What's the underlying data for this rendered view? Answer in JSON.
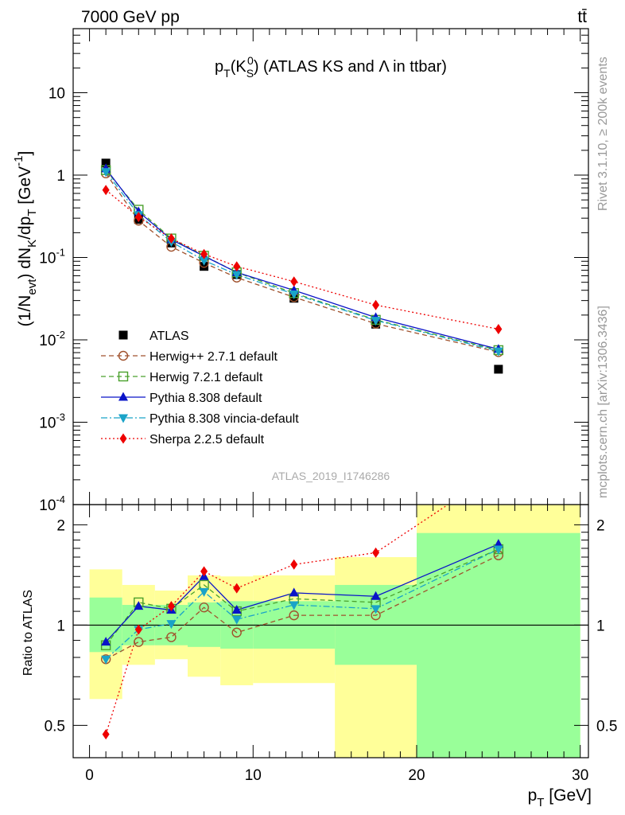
{
  "header": {
    "energy_label": "7000 GeV pp",
    "process_label": "tt̄"
  },
  "side_labels": {
    "rivet": "Rivet 3.1.10, ≥ 200k events",
    "mcplots": "mcplots.cern.ch [arXiv:1306.3436]"
  },
  "watermark": "ATLAS_2019_I1746286",
  "chart_data": [
    {
      "type": "line",
      "title": "p_T(K_S^0) (ATLAS KS and Λ in ttbar)",
      "ylabel": "(1/N_evt) dN_K/dp_T [GeV^-1]",
      "yscale": "log",
      "ylim": [
        0.0001,
        60
      ],
      "xlim": [
        -1,
        30.5
      ],
      "y_tick_labels": [
        "10^-4",
        "10^-3",
        "10^-2",
        "10^-1",
        "1",
        "10"
      ],
      "legend_position": "lower-left",
      "x": [
        1,
        3,
        5,
        7,
        9,
        12.5,
        17.5,
        25
      ],
      "series": [
        {
          "name": "ATLAS",
          "color": "#000000",
          "marker": "square-filled",
          "line": "none",
          "values": [
            1.4,
            0.29,
            0.15,
            0.078,
            0.062,
            0.032,
            0.0155,
            0.0044
          ]
        },
        {
          "name": "Herwig++ 2.7.1 default",
          "color": "#a0522d",
          "marker": "circle-open",
          "line": "dashed",
          "values": [
            1.05,
            0.28,
            0.135,
            0.086,
            0.057,
            0.033,
            0.0157,
            0.0071
          ]
        },
        {
          "name": "Herwig 7.2.1 default",
          "color": "#4aa02c",
          "marker": "square-open",
          "line": "dashed",
          "values": [
            1.15,
            0.38,
            0.17,
            0.105,
            0.066,
            0.037,
            0.0175,
            0.0075
          ]
        },
        {
          "name": "Pythia 8.308 default",
          "color": "#0a14c8",
          "marker": "triangle-up",
          "line": "solid",
          "values": [
            1.2,
            0.36,
            0.165,
            0.104,
            0.066,
            0.04,
            0.0187,
            0.0077
          ]
        },
        {
          "name": "Pythia 8.308 vincia-default",
          "color": "#1aa3c8",
          "marker": "triangle-down",
          "line": "dashdot",
          "values": [
            1.1,
            0.33,
            0.155,
            0.092,
            0.062,
            0.036,
            0.0172,
            0.0073
          ]
        },
        {
          "name": "Sherpa 2.2.5 default",
          "color": "#ee0000",
          "marker": "diamond",
          "line": "dotted",
          "values": [
            0.66,
            0.31,
            0.17,
            0.11,
            0.078,
            0.051,
            0.0265,
            0.0135
          ]
        }
      ]
    },
    {
      "type": "line",
      "ylabel": "Ratio to ATLAS",
      "xlabel": "p_T [GeV]",
      "ylim": [
        0.4,
        2.3
      ],
      "xlim": [
        -1,
        30.5
      ],
      "x_tick_labels": [
        "0",
        "10",
        "20",
        "30"
      ],
      "y_tick_labels": [
        "0.5",
        "1",
        "2"
      ],
      "reference_line": 1,
      "bands": [
        {
          "xlo": 0,
          "xhi": 2,
          "stat_lo": 0.83,
          "stat_hi": 1.21,
          "tot_lo": 0.6,
          "tot_hi": 1.47
        },
        {
          "xlo": 2,
          "xhi": 4,
          "stat_lo": 0.87,
          "stat_hi": 1.15,
          "tot_lo": 0.76,
          "tot_hi": 1.32
        },
        {
          "xlo": 4,
          "xhi": 6,
          "stat_lo": 0.87,
          "stat_hi": 1.15,
          "tot_lo": 0.79,
          "tot_hi": 1.27
        },
        {
          "xlo": 6,
          "xhi": 8,
          "stat_lo": 0.86,
          "stat_hi": 1.17,
          "tot_lo": 0.7,
          "tot_hi": 1.41
        },
        {
          "xlo": 8,
          "xhi": 10,
          "stat_lo": 0.85,
          "stat_hi": 1.18,
          "tot_lo": 0.66,
          "tot_hi": 1.4
        },
        {
          "xlo": 10,
          "xhi": 15,
          "stat_lo": 0.85,
          "stat_hi": 1.18,
          "tot_lo": 0.67,
          "tot_hi": 1.41
        },
        {
          "xlo": 15,
          "xhi": 20,
          "stat_lo": 0.76,
          "stat_hi": 1.32,
          "tot_lo": 0.39,
          "tot_hi": 1.6
        },
        {
          "xlo": 20,
          "xhi": 30,
          "stat_lo": 0.4,
          "stat_hi": 1.89,
          "tot_lo": 0.4,
          "tot_hi": 2.3
        }
      ],
      "x": [
        1,
        3,
        5,
        7,
        9,
        12.5,
        17.5,
        25
      ],
      "series": [
        {
          "name": "Herwig++ 2.7.1 default",
          "color": "#a0522d",
          "marker": "circle-open",
          "line": "dashed",
          "values": [
            0.79,
            0.89,
            0.92,
            1.13,
            0.95,
            1.07,
            1.07,
            1.62
          ]
        },
        {
          "name": "Herwig 7.2.1 default",
          "color": "#4aa02c",
          "marker": "square-open",
          "line": "dashed",
          "values": [
            0.87,
            1.17,
            1.12,
            1.32,
            1.1,
            1.2,
            1.17,
            1.69
          ]
        },
        {
          "name": "Pythia 8.308 default",
          "color": "#0a14c8",
          "marker": "triangle-up",
          "line": "solid",
          "values": [
            0.89,
            1.14,
            1.11,
            1.4,
            1.11,
            1.25,
            1.22,
            1.75
          ]
        },
        {
          "name": "Pythia 8.308 vincia-default",
          "color": "#1aa3c8",
          "marker": "triangle-down",
          "line": "dashdot",
          "values": [
            0.79,
            0.97,
            1.01,
            1.26,
            1.04,
            1.15,
            1.12,
            1.69
          ]
        },
        {
          "name": "Sherpa 2.2.5 default",
          "color": "#ee0000",
          "marker": "diamond",
          "line": "dotted",
          "values": [
            0.47,
            0.97,
            1.14,
            1.45,
            1.29,
            1.52,
            1.65,
            2.9
          ]
        }
      ]
    }
  ]
}
